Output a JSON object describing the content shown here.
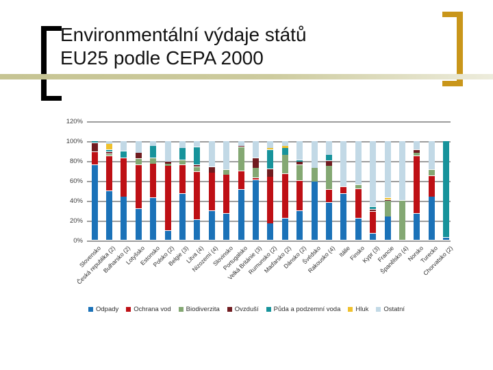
{
  "slide": {
    "title": "Environmentální výdaje států\nEU25 podle CEPA 2000",
    "accent_colors": {
      "left_bracket": "#000000",
      "right_bracket": "#c9961a",
      "band": "#c6c493"
    }
  },
  "chart_data": {
    "type": "bar",
    "stacked": true,
    "stacked_100_percent": true,
    "title": "",
    "xlabel": "",
    "ylabel": "",
    "ylim": [
      0,
      120
    ],
    "grid": true,
    "gridline_color": "#9c9c9c",
    "legend_position": "bottom",
    "yticks": [
      "0%",
      "20%",
      "40%",
      "60%",
      "80%",
      "100%",
      "120%"
    ],
    "categories": [
      "Slovensko",
      "Česká republika (2)",
      "Bulharsko (2)",
      "Lotyšsko",
      "Estonsko",
      "Polsko (2)",
      "Belgie (3)",
      "Litva (4)",
      "Nizozemí (4)",
      "Slovinsko",
      "Portugalsko",
      "Velká Británie (3)",
      "Rumunsko (2)",
      "Maďarsko (2)",
      "Dánsko (2)",
      "Švédsko",
      "Rakousko (4)",
      "Itálie",
      "Finsko",
      "Kypr (3)",
      "Francie",
      "Španělsko (4)",
      "Norsko",
      "Turecko",
      "Chorvatsko (2)"
    ],
    "series": [
      {
        "name": "Odpady",
        "color": "#1b72b8",
        "values": [
          76,
          50,
          44,
          32,
          43,
          10,
          47,
          21,
          30,
          27,
          51,
          61,
          17,
          22,
          30,
          59,
          38,
          47,
          22,
          7,
          24,
          0,
          27,
          44,
          3
        ]
      },
      {
        "name": "Ochrana vod",
        "color": "#be1015",
        "values": [
          13,
          35,
          39,
          44,
          34,
          65,
          29,
          48,
          38,
          39,
          19,
          2,
          47,
          45,
          30,
          0,
          13,
          7,
          30,
          22,
          0,
          0,
          58,
          21,
          0
        ]
      },
      {
        "name": "Biodiverzita",
        "color": "#84a873",
        "values": [
          0,
          2,
          0,
          6,
          6,
          2,
          5,
          5,
          0,
          5,
          24,
          10,
          0,
          19,
          16,
          14,
          24,
          0,
          4,
          0,
          16,
          40,
          3,
          6,
          0
        ]
      },
      {
        "name": "Ovzduší",
        "color": "#701c20",
        "values": [
          9,
          2,
          0,
          6,
          0,
          2,
          0,
          2,
          6,
          0,
          1,
          10,
          8,
          0,
          3,
          0,
          5,
          0,
          0,
          2,
          1,
          0,
          3,
          0,
          0
        ]
      },
      {
        "name": "Půda a podzemní voda",
        "color": "#17939b",
        "values": [
          2,
          2,
          7,
          0,
          12,
          0,
          12,
          18,
          0,
          0,
          0,
          0,
          19,
          7,
          2,
          0,
          6,
          0,
          0,
          3,
          0,
          0,
          0,
          0,
          97
        ]
      },
      {
        "name": "Hluk",
        "color": "#f0c12c",
        "values": [
          0,
          6,
          0,
          0,
          0,
          0,
          0,
          0,
          0,
          0,
          0,
          0,
          2,
          2,
          0,
          0,
          0,
          0,
          0,
          0,
          2,
          0,
          0,
          0,
          0
        ]
      },
      {
        "name": "Ostatní",
        "color": "#c2d9e6",
        "values": [
          0,
          3,
          10,
          12,
          5,
          21,
          7,
          6,
          26,
          29,
          5,
          17,
          7,
          5,
          19,
          27,
          14,
          46,
          44,
          66,
          57,
          60,
          9,
          29,
          0
        ]
      }
    ]
  }
}
